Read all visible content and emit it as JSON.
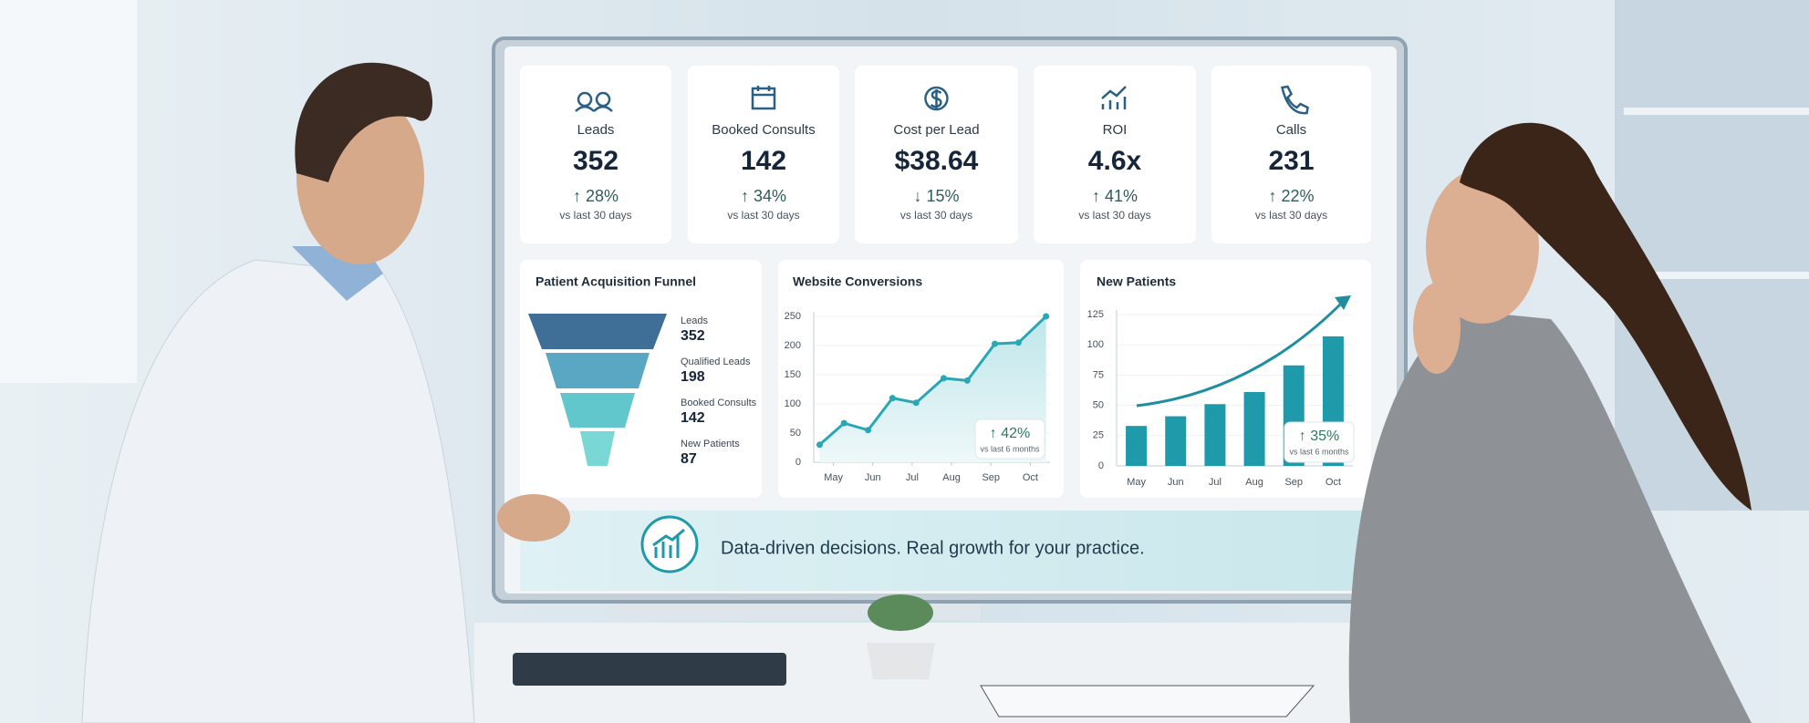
{
  "kpis": [
    {
      "label": "Leads",
      "value": "352",
      "change": "↑ 28%",
      "comparison": "vs last 30 days"
    },
    {
      "label": "Booked Consults",
      "value": "142",
      "change": "↑ 34%",
      "comparison": "vs last 30 days"
    },
    {
      "label": "Cost per Lead",
      "value": "$38.64",
      "change": "↓ 15%",
      "comparison": "vs last 30 days"
    },
    {
      "label": "ROI",
      "value": "4.6x",
      "change": "↑ 41%",
      "comparison": "vs last 30 days"
    },
    {
      "label": "Calls",
      "value": "231",
      "change": "↑ 22%",
      "comparison": "vs last 30 days"
    }
  ],
  "funnel": {
    "title": "Patient Acquisition Funnel",
    "stages": [
      {
        "label": "Leads",
        "value": "352"
      },
      {
        "label": "Qualified Leads",
        "value": "198"
      },
      {
        "label": "Booked Consults",
        "value": "142"
      },
      {
        "label": "New Patients",
        "value": "87"
      }
    ]
  },
  "chart_data": [
    {
      "type": "line",
      "title": "Website Conversions",
      "x": [
        -0.35,
        0.27,
        0.88,
        1.5,
        2.1,
        2.8,
        3.4,
        4.1,
        4.7,
        5.4
      ],
      "values": [
        30,
        67,
        55,
        110,
        102,
        144,
        140,
        203,
        205,
        250
      ],
      "color": "#2aa7b5",
      "xlim": [
        -0.5,
        5.5
      ],
      "xticks": [
        {
          "value": 0,
          "label": "May"
        },
        {
          "value": 1,
          "label": "Jun"
        },
        {
          "value": 2,
          "label": "Jul"
        },
        {
          "value": 3,
          "label": "Aug"
        },
        {
          "value": 4,
          "label": "Sep"
        },
        {
          "value": 5,
          "label": "Oct"
        }
      ],
      "ylim": [
        0,
        250
      ],
      "yticks": [
        0,
        50,
        100,
        150,
        200,
        250
      ],
      "grid": true,
      "annotation": "↑ 42%",
      "annotation_note": "vs last 6 months"
    },
    {
      "type": "bar",
      "title": "New Patients",
      "categories": [
        "May",
        "Jun",
        "Jul",
        "Aug",
        "Sep",
        "Oct"
      ],
      "values": [
        33,
        41,
        51,
        61,
        83,
        107
      ],
      "color": "#1e9aab",
      "ylim": [
        0,
        125
      ],
      "yticks": [
        0,
        25,
        50,
        75,
        100,
        125
      ],
      "grid": true,
      "annotation": "↑ 35%",
      "annotation_note": "vs last 6 months"
    }
  ],
  "tagline": "Data-driven decisions. Real growth for your practice."
}
